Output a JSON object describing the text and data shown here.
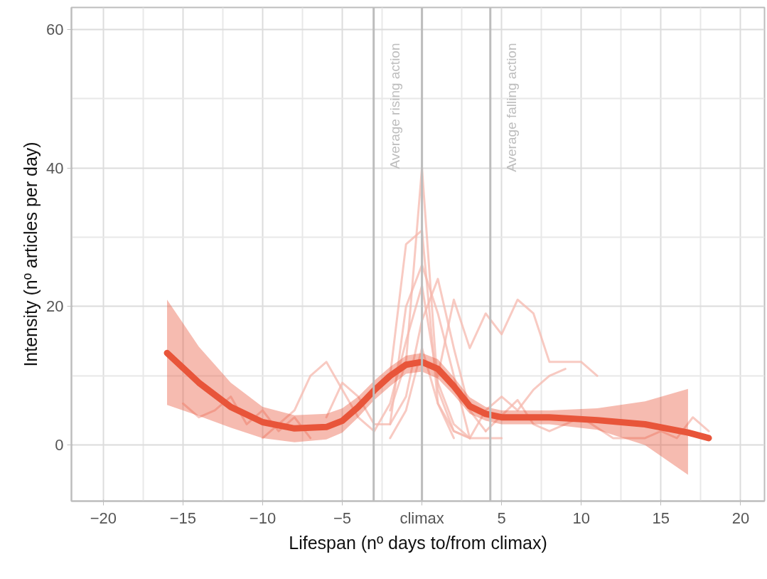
{
  "chart_data": {
    "type": "line",
    "xlabel": "Lifespan (nº days to/from climax)",
    "ylabel": "Intensity (nº articles per day)",
    "xlim": [
      -22,
      21.5
    ],
    "ylim": [
      -8.1,
      63.2
    ],
    "xticks": [
      -20,
      -15,
      -10,
      -5,
      {
        "value": 0,
        "label": "climax"
      },
      5,
      10,
      15,
      20
    ],
    "yticks": [
      0,
      20,
      40,
      60
    ],
    "grid": true,
    "line_style": "solid",
    "marker": "none",
    "ref_lines": [
      {
        "axis": "x",
        "value": -3.03,
        "label": "Average rising action",
        "color": "#bdbdbd"
      },
      {
        "axis": "x",
        "value": 0,
        "label": null,
        "color": "#bdbdbd"
      },
      {
        "axis": "x",
        "value": 4.29,
        "label": "Average falling action",
        "color": "#bdbdbd"
      }
    ],
    "series": [
      {
        "color": "#f6b8ad",
        "x": [
          -2,
          -1,
          0,
          1,
          2,
          3
        ],
        "values": [
          5,
          12,
          40,
          8,
          2,
          1
        ]
      },
      {
        "color": "#f6b8ad",
        "x": [
          -2,
          -1,
          0,
          1,
          2
        ],
        "values": [
          10,
          29,
          31,
          6,
          1
        ]
      },
      {
        "color": "#f6b8ad",
        "x": [
          -2,
          -1,
          0,
          1,
          2,
          3
        ],
        "values": [
          3,
          20,
          26,
          19,
          10,
          1
        ]
      },
      {
        "color": "#f6b8ad",
        "x": [
          1,
          2,
          3,
          4,
          5,
          6,
          7,
          8,
          9,
          10,
          11
        ],
        "values": [
          10,
          21,
          14,
          19,
          16,
          21,
          19,
          12,
          12,
          12,
          10
        ]
      },
      {
        "color": "#f6b8ad",
        "x": [
          3,
          4,
          5,
          6,
          7,
          8,
          9
        ],
        "values": [
          1,
          5,
          7,
          5,
          8,
          10,
          11
        ]
      },
      {
        "color": "#f6b8ad",
        "x": [
          4,
          6,
          7,
          8,
          10,
          12,
          14,
          15,
          16,
          17,
          18
        ],
        "values": [
          2,
          6.5,
          3,
          2,
          4,
          1,
          1,
          2,
          1,
          4,
          2
        ]
      },
      {
        "color": "#f6b8ad",
        "x": [
          -15,
          -14,
          -13,
          -12,
          -11,
          -10,
          -9,
          -8,
          -7
        ],
        "values": [
          6,
          4,
          5,
          7,
          3,
          5,
          2,
          4,
          1
        ]
      },
      {
        "color": "#f6b8ad",
        "x": [
          -10,
          -9,
          -8,
          -7,
          -6,
          -5,
          -4,
          -3,
          -2,
          -1,
          0,
          1,
          2,
          3
        ],
        "values": [
          1,
          3,
          5,
          10,
          12,
          8,
          4,
          2,
          6,
          15,
          23,
          9,
          3,
          1
        ]
      },
      {
        "color": "#f6b8ad",
        "x": [
          -6,
          -5,
          -4,
          -3,
          -2,
          -1,
          0,
          1,
          2,
          3,
          4
        ],
        "values": [
          4,
          9,
          7,
          3,
          3,
          7,
          18,
          24,
          14,
          5,
          2
        ]
      },
      {
        "color": "#f6b8ad",
        "x": [
          -2,
          -1,
          0,
          1,
          2,
          3,
          4,
          5
        ],
        "values": [
          1,
          5,
          14,
          6,
          2,
          1,
          1,
          1
        ]
      },
      {
        "color": "#e8553a",
        "x": [
          -16,
          -14,
          -12,
          -10,
          -8,
          -6,
          -5,
          -4,
          -3,
          -2,
          -1,
          0,
          1,
          2,
          3,
          4,
          5,
          8,
          11,
          14,
          16.7,
          18
        ],
        "values": [
          13.3,
          9,
          5.5,
          3.3,
          2.4,
          2.6,
          3.5,
          5.5,
          7.9,
          10,
          11.6,
          12,
          11,
          8.5,
          5.6,
          4.5,
          4,
          4,
          3.6,
          3,
          1.8,
          1
        ],
        "lower": [
          5.8,
          4.2,
          2.5,
          1.0,
          0.4,
          0.8,
          1.8,
          4,
          6.5,
          8.5,
          10.3,
          10.6,
          9.6,
          7.2,
          4.5,
          3.5,
          3,
          3,
          2.2,
          0,
          -4.3,
          null
        ],
        "upper": [
          21,
          14.2,
          9,
          5.5,
          4.3,
          4.5,
          5.3,
          7,
          9.3,
          11.3,
          12.9,
          13.3,
          12.4,
          9.8,
          6.9,
          5.5,
          5,
          5,
          5.3,
          6.3,
          8.1,
          null
        ]
      }
    ]
  }
}
